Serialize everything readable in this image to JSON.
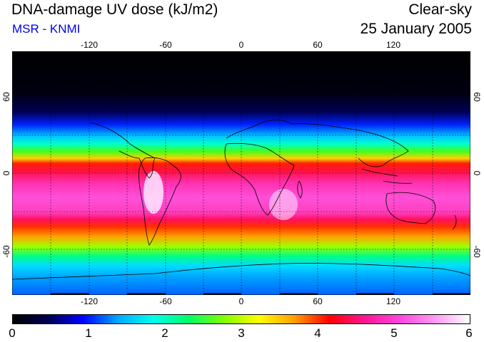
{
  "header": {
    "title": "DNA-damage UV dose (kJ/m2)",
    "source": "MSR - KNMI",
    "mode": "Clear-sky",
    "date": "25 January 2005"
  },
  "map": {
    "projection": "lat-lon",
    "lon_ticks": [
      "-120",
      "-60",
      "0",
      "60",
      "120"
    ],
    "lat_ticks": [
      "60",
      "0",
      "-60"
    ],
    "gridlines": "dotted",
    "coastlines": true
  },
  "colorbar": {
    "min": 0,
    "max": 6,
    "tick_labels": [
      "0",
      "1",
      "2",
      "3",
      "4",
      "5",
      "6"
    ],
    "colors": [
      "#000000",
      "#000050",
      "#0000ff",
      "#00aaff",
      "#00ffee",
      "#00ff66",
      "#80ff00",
      "#ffff00",
      "#ffa000",
      "#ff0000",
      "#ff1493",
      "#ff44dd",
      "#ff99f0",
      "#ffffff"
    ]
  },
  "colors": {
    "title": "#000000",
    "source": "#0000ee"
  }
}
